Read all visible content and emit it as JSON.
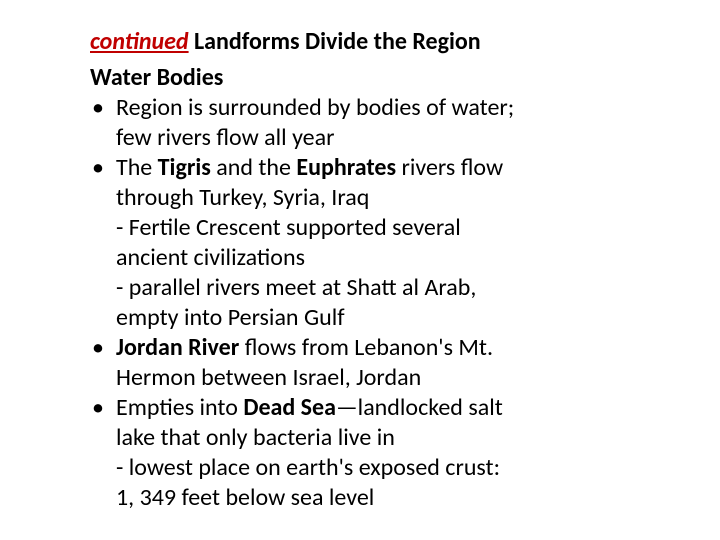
{
  "heading": {
    "continued": "continued",
    "rest": " Landforms Divide the Region"
  },
  "subheading": "Water Bodies",
  "b1": {
    "dot": "•",
    "l1": "Region is surrounded by bodies of water;",
    "l2": "few rivers flow all year"
  },
  "b2": {
    "dot": "•",
    "pre": "The ",
    "tigris": "Tigris",
    "mid": " and the ",
    "euphrates": "Euphrates",
    "post": " rivers flow",
    "l2": "through Turkey, Syria, Iraq",
    "s1a": "-  Fertile Crescent supported several",
    "s1b": "ancient  civilizations",
    "s2a": "-  parallel rivers meet at Shatt al Arab,",
    "s2b": "empty into Persian Gulf"
  },
  "b3": {
    "dot": "•",
    "jordan": "Jordan River",
    "post": " flows from Lebanon's Mt.",
    "l2": "Hermon between Israel, Jordan"
  },
  "b4": {
    "dot": "•",
    "pre": "Empties into ",
    "dead": "Dead Sea",
    "post": "—landlocked salt",
    "l2": "lake that only bacteria live in",
    "s1a": "-  lowest place on earth's exposed crust:",
    "s1b": "1, 349 feet below sea level"
  }
}
